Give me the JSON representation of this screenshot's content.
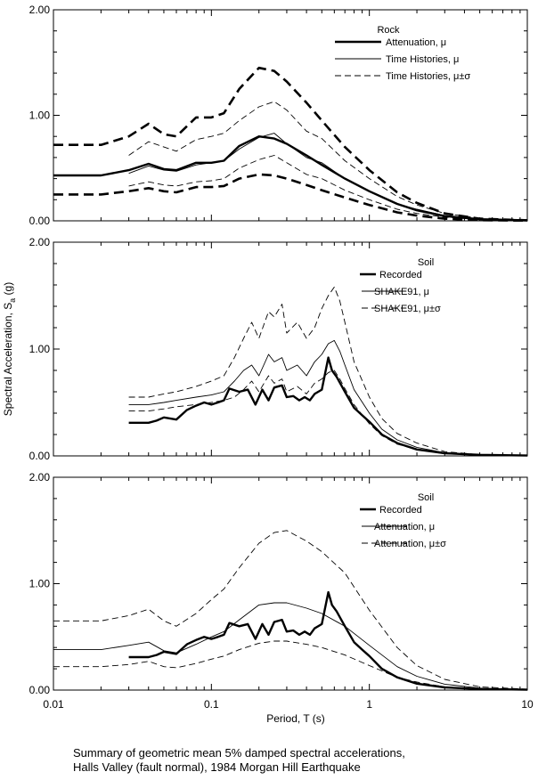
{
  "chart_data": {
    "type": "line",
    "xscale": "log",
    "xlim": [
      0.01,
      10
    ],
    "ylim": [
      0,
      2
    ],
    "x_ticks": [
      "0.01",
      "0.1",
      "1",
      "10"
    ],
    "y_ticks": [
      "0.00",
      "1.00",
      "2.00"
    ],
    "xlabel": "Period, T (s)",
    "ylabel": "Spectral Acceleration, S",
    "ylabel_sub": "a",
    "ylabel_unit": " (g)",
    "caption": [
      "Summary of geometric mean 5% damped spectral accelerations,",
      "Halls Valley (fault normal), 1984 Morgan Hill Earthquake"
    ],
    "panels": [
      {
        "legend_title": "Rock",
        "series": [
          {
            "name": "Attenuation, μ",
            "style": "thick",
            "x": [
              0.01,
              0.02,
              0.03,
              0.04,
              0.05,
              0.06,
              0.08,
              0.1,
              0.12,
              0.15,
              0.2,
              0.25,
              0.3,
              0.4,
              0.5,
              0.7,
              1,
              1.5,
              2,
              3,
              5,
              10
            ],
            "y": [
              0.43,
              0.43,
              0.48,
              0.54,
              0.49,
              0.48,
              0.55,
              0.55,
              0.57,
              0.71,
              0.8,
              0.78,
              0.73,
              0.62,
              0.53,
              0.4,
              0.28,
              0.16,
              0.1,
              0.045,
              0.015,
              0.004
            ]
          },
          {
            "name": "Time Histories, μ",
            "style": "thin",
            "x": [
              0.03,
              0.04,
              0.05,
              0.06,
              0.08,
              0.1,
              0.12,
              0.15,
              0.2,
              0.25,
              0.3,
              0.4,
              0.5,
              0.7,
              1,
              1.5,
              2,
              3,
              4,
              5
            ],
            "y": [
              0.45,
              0.52,
              0.48,
              0.47,
              0.53,
              0.55,
              0.57,
              0.68,
              0.79,
              0.83,
              0.73,
              0.6,
              0.55,
              0.4,
              0.28,
              0.16,
              0.11,
              0.05,
              0.03,
              0.02
            ]
          },
          {
            "name": "Time Histories, μ±σ",
            "style": "thin-dash",
            "x": [
              0.03,
              0.04,
              0.05,
              0.06,
              0.08,
              0.1,
              0.12,
              0.15,
              0.2,
              0.25,
              0.3,
              0.4,
              0.5,
              0.7,
              1,
              1.5,
              2,
              3,
              5
            ],
            "y": [
              0.62,
              0.75,
              0.7,
              0.66,
              0.77,
              0.8,
              0.83,
              0.95,
              1.08,
              1.13,
              1.05,
              0.85,
              0.78,
              0.57,
              0.4,
              0.23,
              0.15,
              0.07,
              0.025
            ]
          },
          {
            "name": "",
            "style": "thin-dash",
            "x": [
              0.03,
              0.04,
              0.05,
              0.06,
              0.08,
              0.1,
              0.12,
              0.15,
              0.2,
              0.25,
              0.3,
              0.4,
              0.5,
              0.7,
              1,
              1.5,
              2,
              3,
              5
            ],
            "y": [
              0.33,
              0.37,
              0.34,
              0.33,
              0.37,
              0.38,
              0.4,
              0.5,
              0.58,
              0.62,
              0.55,
              0.44,
              0.4,
              0.29,
              0.2,
              0.11,
              0.07,
              0.035,
              0.012
            ]
          },
          {
            "name": "",
            "style": "thick-dash",
            "x": [
              0.01,
              0.02,
              0.03,
              0.04,
              0.05,
              0.06,
              0.08,
              0.1,
              0.12,
              0.15,
              0.2,
              0.25,
              0.3,
              0.4,
              0.5,
              0.7,
              1,
              1.5,
              2,
              3,
              5,
              10
            ],
            "y": [
              0.72,
              0.72,
              0.8,
              0.92,
              0.82,
              0.8,
              0.98,
              0.98,
              1.02,
              1.25,
              1.45,
              1.42,
              1.32,
              1.12,
              0.95,
              0.7,
              0.48,
              0.27,
              0.17,
              0.07,
              0.02,
              0.005
            ]
          },
          {
            "name": "",
            "style": "thick-dash",
            "x": [
              0.01,
              0.02,
              0.03,
              0.04,
              0.05,
              0.06,
              0.08,
              0.1,
              0.12,
              0.15,
              0.2,
              0.25,
              0.3,
              0.4,
              0.5,
              0.7,
              1,
              1.5,
              2,
              3,
              5,
              10
            ],
            "y": [
              0.25,
              0.25,
              0.28,
              0.31,
              0.28,
              0.27,
              0.32,
              0.32,
              0.33,
              0.4,
              0.44,
              0.43,
              0.4,
              0.34,
              0.29,
              0.22,
              0.15,
              0.08,
              0.05,
              0.02,
              0.006,
              0.002
            ]
          }
        ]
      },
      {
        "legend_title": "Soil",
        "series": [
          {
            "name": "Recorded",
            "style": "thick",
            "x": [
              0.03,
              0.04,
              0.045,
              0.05,
              0.06,
              0.07,
              0.08,
              0.09,
              0.1,
              0.11,
              0.12,
              0.13,
              0.15,
              0.17,
              0.19,
              0.21,
              0.23,
              0.25,
              0.28,
              0.3,
              0.33,
              0.36,
              0.39,
              0.42,
              0.45,
              0.5,
              0.55,
              0.58,
              0.62,
              0.7,
              0.8,
              0.9,
              1,
              1.2,
              1.5,
              2,
              3,
              5,
              10
            ],
            "y": [
              0.31,
              0.31,
              0.33,
              0.36,
              0.34,
              0.43,
              0.47,
              0.5,
              0.48,
              0.5,
              0.52,
              0.63,
              0.6,
              0.62,
              0.48,
              0.62,
              0.52,
              0.64,
              0.66,
              0.55,
              0.56,
              0.52,
              0.55,
              0.52,
              0.58,
              0.62,
              0.92,
              0.8,
              0.74,
              0.6,
              0.45,
              0.38,
              0.32,
              0.2,
              0.12,
              0.06,
              0.025,
              0.01,
              0.003
            ]
          },
          {
            "name": "SHAKE91, μ",
            "style": "thin",
            "x": [
              0.03,
              0.04,
              0.05,
              0.06,
              0.08,
              0.1,
              0.12,
              0.14,
              0.16,
              0.18,
              0.2,
              0.23,
              0.25,
              0.28,
              0.3,
              0.35,
              0.4,
              0.45,
              0.5,
              0.55,
              0.6,
              0.65,
              0.7,
              0.8,
              1,
              1.2,
              1.5,
              2,
              3,
              5,
              10
            ],
            "y": [
              0.48,
              0.48,
              0.5,
              0.52,
              0.55,
              0.57,
              0.6,
              0.7,
              0.8,
              0.85,
              0.75,
              0.95,
              0.88,
              0.92,
              0.8,
              0.85,
              0.75,
              0.88,
              0.95,
              1.05,
              1.08,
              0.98,
              0.85,
              0.62,
              0.4,
              0.25,
              0.15,
              0.08,
              0.03,
              0.01,
              0.003
            ]
          },
          {
            "name": "SHAKE91, μ±σ",
            "style": "thin-dash",
            "x": [
              0.03,
              0.04,
              0.05,
              0.06,
              0.08,
              0.1,
              0.12,
              0.14,
              0.16,
              0.18,
              0.2,
              0.23,
              0.25,
              0.28,
              0.3,
              0.35,
              0.4,
              0.45,
              0.5,
              0.55,
              0.6,
              0.65,
              0.7,
              0.8,
              1,
              1.2,
              1.5,
              2,
              3,
              5,
              10
            ],
            "y": [
              0.55,
              0.55,
              0.58,
              0.6,
              0.65,
              0.7,
              0.75,
              0.92,
              1.1,
              1.25,
              1.1,
              1.35,
              1.3,
              1.42,
              1.15,
              1.25,
              1.1,
              1.2,
              1.38,
              1.5,
              1.58,
              1.45,
              1.25,
              0.88,
              0.55,
              0.35,
              0.21,
              0.12,
              0.04,
              0.012,
              0.003
            ]
          },
          {
            "name": "",
            "style": "thin-dash",
            "x": [
              0.03,
              0.04,
              0.05,
              0.06,
              0.08,
              0.1,
              0.12,
              0.14,
              0.16,
              0.18,
              0.2,
              0.23,
              0.25,
              0.28,
              0.3,
              0.35,
              0.4,
              0.45,
              0.5,
              0.55,
              0.6,
              0.65,
              0.7,
              0.8,
              1,
              1.2,
              1.5,
              2,
              3,
              5,
              10
            ],
            "y": [
              0.42,
              0.42,
              0.44,
              0.46,
              0.48,
              0.5,
              0.52,
              0.55,
              0.62,
              0.7,
              0.6,
              0.75,
              0.68,
              0.72,
              0.6,
              0.65,
              0.58,
              0.68,
              0.72,
              0.78,
              0.8,
              0.72,
              0.63,
              0.48,
              0.3,
              0.19,
              0.11,
              0.06,
              0.02,
              0.008,
              0.002
            ]
          }
        ]
      },
      {
        "legend_title": "Soil",
        "series": [
          {
            "name": "Recorded",
            "style": "thick",
            "x": [
              0.03,
              0.04,
              0.045,
              0.05,
              0.06,
              0.07,
              0.08,
              0.09,
              0.1,
              0.11,
              0.12,
              0.13,
              0.15,
              0.17,
              0.19,
              0.21,
              0.23,
              0.25,
              0.28,
              0.3,
              0.33,
              0.36,
              0.39,
              0.42,
              0.45,
              0.5,
              0.55,
              0.58,
              0.62,
              0.7,
              0.8,
              0.9,
              1,
              1.2,
              1.5,
              2,
              3,
              5,
              10
            ],
            "y": [
              0.31,
              0.31,
              0.33,
              0.36,
              0.34,
              0.43,
              0.47,
              0.5,
              0.48,
              0.5,
              0.52,
              0.63,
              0.6,
              0.62,
              0.48,
              0.62,
              0.52,
              0.64,
              0.66,
              0.55,
              0.56,
              0.52,
              0.55,
              0.52,
              0.58,
              0.62,
              0.92,
              0.8,
              0.74,
              0.6,
              0.45,
              0.38,
              0.32,
              0.2,
              0.12,
              0.06,
              0.025,
              0.01,
              0.003
            ]
          },
          {
            "name": "Attenuation, μ",
            "style": "thin",
            "x": [
              0.01,
              0.02,
              0.03,
              0.04,
              0.05,
              0.06,
              0.08,
              0.1,
              0.12,
              0.15,
              0.2,
              0.25,
              0.3,
              0.4,
              0.5,
              0.7,
              1,
              1.5,
              2,
              3,
              5,
              10
            ],
            "y": [
              0.38,
              0.38,
              0.42,
              0.45,
              0.37,
              0.35,
              0.43,
              0.5,
              0.55,
              0.66,
              0.8,
              0.82,
              0.82,
              0.77,
              0.72,
              0.6,
              0.42,
              0.22,
              0.13,
              0.055,
              0.018,
              0.005
            ]
          },
          {
            "name": "Attenuation, μ±σ",
            "style": "thin-dash",
            "x": [
              0.01,
              0.02,
              0.03,
              0.04,
              0.05,
              0.06,
              0.08,
              0.1,
              0.12,
              0.15,
              0.2,
              0.25,
              0.3,
              0.4,
              0.5,
              0.7,
              1,
              1.5,
              2,
              3,
              5,
              10
            ],
            "y": [
              0.65,
              0.65,
              0.7,
              0.76,
              0.65,
              0.6,
              0.72,
              0.85,
              0.95,
              1.15,
              1.38,
              1.48,
              1.5,
              1.4,
              1.3,
              1.1,
              0.75,
              0.4,
              0.23,
              0.1,
              0.03,
              0.008
            ]
          },
          {
            "name": "",
            "style": "thin-dash",
            "x": [
              0.01,
              0.02,
              0.03,
              0.04,
              0.05,
              0.06,
              0.08,
              0.1,
              0.12,
              0.15,
              0.2,
              0.25,
              0.3,
              0.4,
              0.5,
              0.7,
              1,
              1.5,
              2,
              3,
              5,
              10
            ],
            "y": [
              0.22,
              0.22,
              0.24,
              0.27,
              0.22,
              0.21,
              0.25,
              0.29,
              0.32,
              0.38,
              0.44,
              0.46,
              0.46,
              0.43,
              0.4,
              0.33,
              0.23,
              0.12,
              0.075,
              0.03,
              0.01,
              0.003
            ]
          }
        ]
      }
    ]
  }
}
